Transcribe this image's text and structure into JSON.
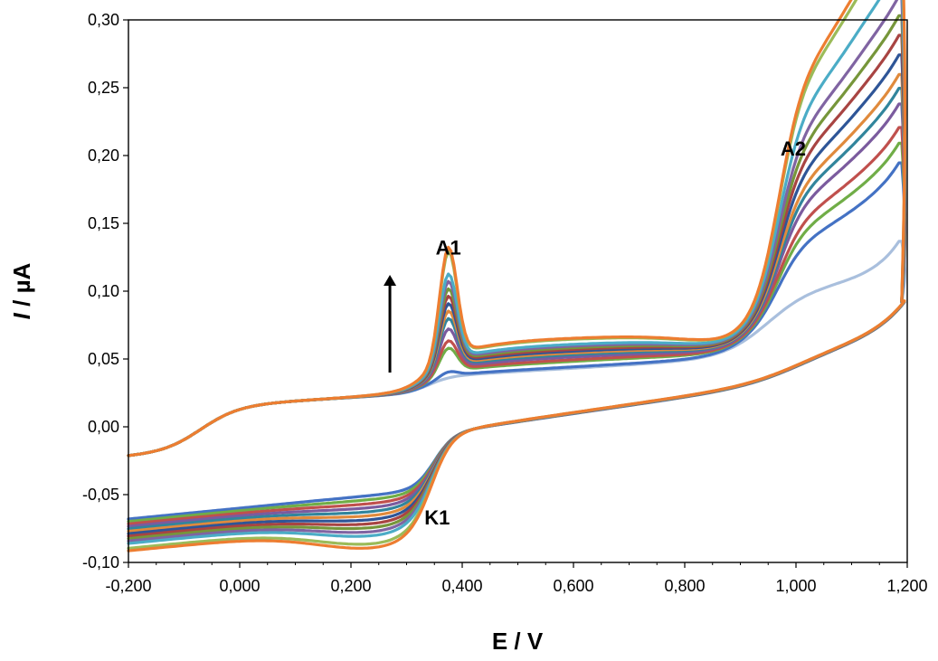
{
  "chart_data": {
    "type": "line",
    "title": "",
    "xlabel": "E / V",
    "ylabel_italic": "I",
    "ylabel_rest": " / µA",
    "xlim": [
      -0.2,
      1.2
    ],
    "ylim": [
      -0.1,
      0.3
    ],
    "x_ticks": [
      -0.2,
      0.0,
      0.2,
      0.4,
      0.6,
      0.8,
      1.0,
      1.2
    ],
    "x_tick_labels": [
      "-0,200",
      "0,000",
      "0,200",
      "0,400",
      "0,600",
      "0,800",
      "1,000",
      "1,200"
    ],
    "y_ticks": [
      -0.1,
      -0.05,
      0.0,
      0.05,
      0.1,
      0.15,
      0.2,
      0.25,
      0.3
    ],
    "y_tick_labels": [
      "-0,10",
      "-0,05",
      "0,00",
      "0,05",
      "0,10",
      "0,15",
      "0,20",
      "0,25",
      "0,30"
    ],
    "grid": false,
    "legend": "none",
    "annotations": [
      {
        "text": "A1",
        "x": 0.375,
        "y": 0.127
      },
      {
        "text": "A2",
        "x": 0.995,
        "y": 0.2
      },
      {
        "text": "K1",
        "x": 0.355,
        "y": -0.072
      }
    ],
    "arrow": {
      "x": 0.27,
      "y_from": 0.04,
      "y_to": 0.112,
      "direction": "up"
    },
    "series_colors": [
      "#a9bfdd",
      "#4472c4",
      "#70ad47",
      "#c0504d",
      "#7b5b9e",
      "#31859c",
      "#e08a3c",
      "#2e5597",
      "#a84442",
      "#76963a",
      "#8064a2",
      "#4bacc6",
      "#9bbb59",
      "#ed7d31"
    ],
    "scans": [
      {
        "a1": 0.0,
        "a2": 0.0,
        "k1": 0.0
      },
      {
        "a1": 0.004,
        "a2": 0.04,
        "k1": 0.0
      },
      {
        "a1": 0.02,
        "a2": 0.05,
        "k1": 0.003
      },
      {
        "a1": 0.025,
        "a2": 0.058,
        "k1": 0.006
      },
      {
        "a1": 0.033,
        "a2": 0.07,
        "k1": 0.009
      },
      {
        "a1": 0.04,
        "a2": 0.078,
        "k1": 0.012
      },
      {
        "a1": 0.045,
        "a2": 0.085,
        "k1": 0.015
      },
      {
        "a1": 0.05,
        "a2": 0.095,
        "k1": 0.018
      },
      {
        "a1": 0.055,
        "a2": 0.105,
        "k1": 0.021
      },
      {
        "a1": 0.06,
        "a2": 0.115,
        "k1": 0.024
      },
      {
        "a1": 0.065,
        "a2": 0.125,
        "k1": 0.027
      },
      {
        "a1": 0.07,
        "a2": 0.14,
        "k1": 0.03
      },
      {
        "a1": 0.085,
        "a2": 0.16,
        "k1": 0.036
      },
      {
        "a1": 0.088,
        "a2": 0.165,
        "k1": 0.039
      }
    ]
  }
}
